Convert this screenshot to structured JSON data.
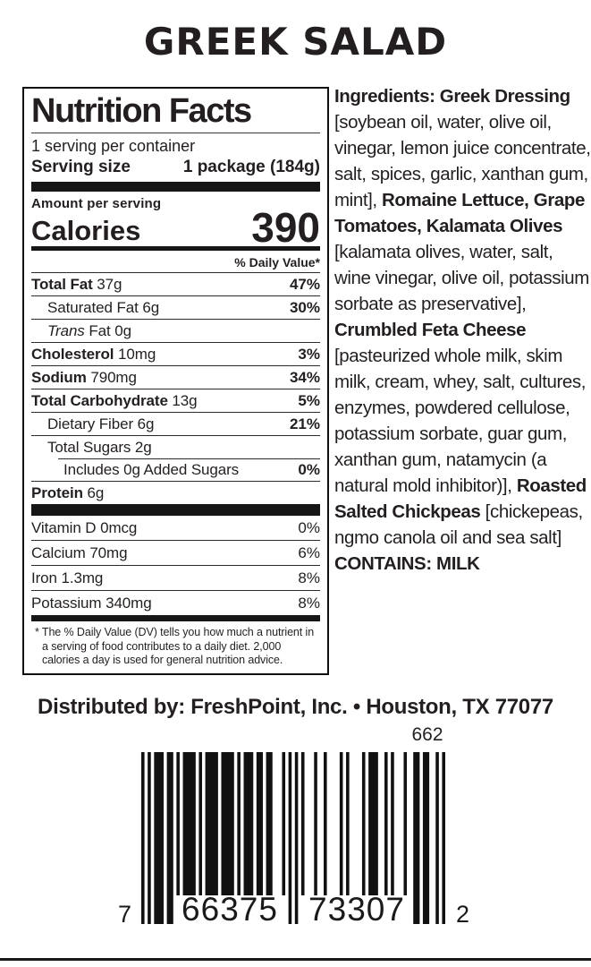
{
  "ink_color": "#231f20",
  "page": {
    "title": "GREEK SALAD"
  },
  "nutrition": {
    "header": "Nutrition Facts",
    "servings_per_container": "1 serving per container",
    "serving_size_label": "Serving size",
    "serving_size_value": "1 package (184g)",
    "amount_per_serving": "Amount per serving",
    "calories_label": "Calories",
    "calories_value": "390",
    "daily_value_header": "% Daily Value*",
    "rows": [
      {
        "name": "Total Fat",
        "amount": "37g",
        "dv": "47%",
        "style": "bold",
        "indent": 0
      },
      {
        "name": "Saturated Fat",
        "amount": "6g",
        "dv": "30%",
        "style": "plain",
        "indent": 1
      },
      {
        "name": "Trans Fat",
        "amount": "0g",
        "dv": "",
        "style": "italic-first",
        "indent": 1
      },
      {
        "name": "Cholesterol",
        "amount": "10mg",
        "dv": "3%",
        "style": "bold",
        "indent": 0
      },
      {
        "name": "Sodium",
        "amount": "790mg",
        "dv": "34%",
        "style": "bold",
        "indent": 0
      },
      {
        "name": "Total Carbohydrate",
        "amount": "13g",
        "dv": "5%",
        "style": "bold",
        "indent": 0
      },
      {
        "name": "Dietary Fiber",
        "amount": "6g",
        "dv": "21%",
        "style": "plain",
        "indent": 1
      },
      {
        "name": "Total Sugars",
        "amount": "2g",
        "dv": "",
        "style": "plain",
        "indent": 1
      },
      {
        "name": "Includes 0g Added Sugars",
        "amount": "",
        "dv": "0%",
        "style": "plain",
        "indent": 2,
        "rule": "indent"
      },
      {
        "name": "Protein",
        "amount": "6g",
        "dv": "",
        "style": "bold",
        "indent": 0
      }
    ],
    "vitamins": [
      {
        "name": "Vitamin D",
        "amount": "0mcg",
        "dv": "0%",
        "style": "plain",
        "indent": 0
      },
      {
        "name": "Calcium",
        "amount": "70mg",
        "dv": "6%",
        "style": "plain",
        "indent": 0
      },
      {
        "name": "Iron",
        "amount": "1.3mg",
        "dv": "8%",
        "style": "plain",
        "indent": 0
      },
      {
        "name": "Potassium",
        "amount": "340mg",
        "dv": "8%",
        "style": "plain",
        "indent": 0
      }
    ],
    "footnote_marker": "*",
    "footnote": "The % Daily Value (DV) tells you how much a nutrient in a serving of food contributes to a daily diet. 2,000 calories a day is used for general nutrition advice."
  },
  "ingredients": {
    "segments": [
      {
        "text": "Ingredients: Greek Dressing",
        "bold": true
      },
      {
        "text": " [soybean oil, water, olive oil, vinegar, lemon juice concentrate, salt, spices, garlic, xanthan gum, mint], ",
        "bold": false
      },
      {
        "text": "Romaine Lettuce, Grape Tomatoes, Kalamata Olives",
        "bold": true
      },
      {
        "text": " [kalamata olives, water, salt, wine vinegar, olive oil, potassium sorbate as preservative], ",
        "bold": false
      },
      {
        "text": "Crumbled Feta Cheese",
        "bold": true
      },
      {
        "text": " [pasteurized whole milk, skim milk, cream, whey, salt, cultures, enzymes, powdered cellulose, potassium sorbate, guar gum, xanthan gum, natamycin (a natural mold inhibitor)], ",
        "bold": false
      },
      {
        "text": "Roasted Salted Chickpeas",
        "bold": true
      },
      {
        "text": " [chickepeas, ngmo canola oil and sea salt]",
        "bold": false
      }
    ],
    "contains": "CONTAINS: MILK"
  },
  "footer": {
    "distributed_by": "Distributed by: FreshPoint, Inc. • Houston, TX 77077",
    "barcode": {
      "top_number": "662",
      "value": "766375733072",
      "digit_left": "7",
      "digit_group1": "66375",
      "digit_group2": "73307",
      "digit_right": "2"
    }
  }
}
